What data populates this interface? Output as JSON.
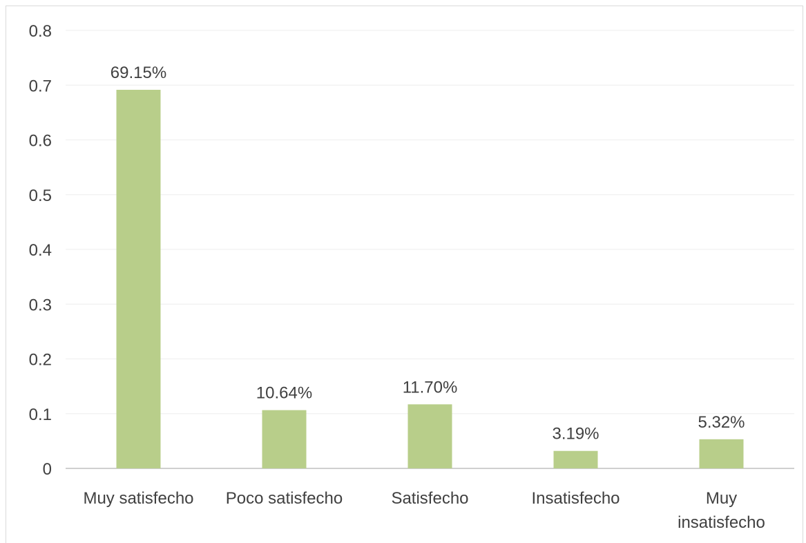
{
  "chart_data": {
    "type": "bar",
    "categories": [
      "Muy satisfecho",
      "Poco satisfecho",
      "Satisfecho",
      "Insatisfecho",
      "Muy insatisfecho"
    ],
    "category_label_lines": [
      [
        "Muy  satisfecho"
      ],
      [
        "Poco  satisfecho"
      ],
      [
        "Satisfecho"
      ],
      [
        "Insatisfecho"
      ],
      [
        "Muy",
        "insatisfecho"
      ]
    ],
    "values": [
      0.6915,
      0.1064,
      0.117,
      0.0319,
      0.0532
    ],
    "data_labels": [
      "69.15%",
      "10.64%",
      "11.70%",
      "3.19%",
      "5.32%"
    ],
    "y_ticks": [
      "0",
      "0.1",
      "0.2",
      "0.3",
      "0.4",
      "0.5",
      "0.6",
      "0.7",
      "0.8"
    ],
    "ylim": [
      0,
      0.8
    ],
    "grid": true,
    "legend": "none",
    "colors": {
      "bar": "#b8ce8a",
      "grid": "#eeeeee",
      "axis": "#bfbfbf",
      "text": "#404040"
    }
  }
}
